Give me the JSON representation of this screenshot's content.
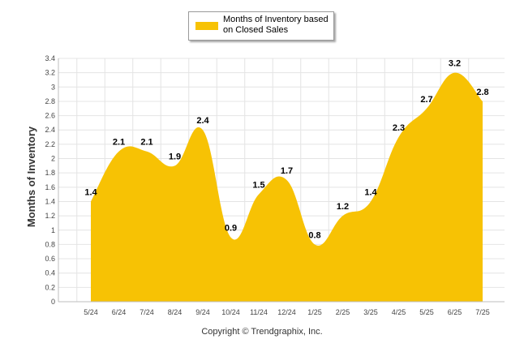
{
  "chart_data": {
    "type": "area",
    "categories": [
      "5/24",
      "6/24",
      "7/24",
      "8/24",
      "9/24",
      "10/24",
      "11/24",
      "12/24",
      "1/25",
      "2/25",
      "3/25",
      "4/25",
      "5/25",
      "6/25",
      "7/25"
    ],
    "series": [
      {
        "name": "Months of Inventory based on Closed Sales",
        "values": [
          1.4,
          2.1,
          2.1,
          1.9,
          2.4,
          0.9,
          1.5,
          1.7,
          0.8,
          1.2,
          1.4,
          2.3,
          2.7,
          3.2,
          2.8
        ],
        "color": "#F7C204"
      }
    ],
    "ylabel": "Months of Inventory",
    "ylim": [
      0,
      3.4
    ],
    "yticks": [
      "0",
      "0.2",
      "0.4",
      "0.6",
      "0.8",
      "1",
      "1.2",
      "1.4",
      "1.6",
      "1.8",
      "2",
      "2.2",
      "2.4",
      "2.6",
      "2.8",
      "3",
      "3.2",
      "3.4"
    ],
    "grid": true,
    "legend_position": "top-center"
  },
  "footer": {
    "copyright": "Copyright © Trendgraphix, Inc."
  },
  "colors": {
    "area": "#F7C204",
    "grid": "#e4e4e4",
    "axis": "#bdbdbd"
  }
}
